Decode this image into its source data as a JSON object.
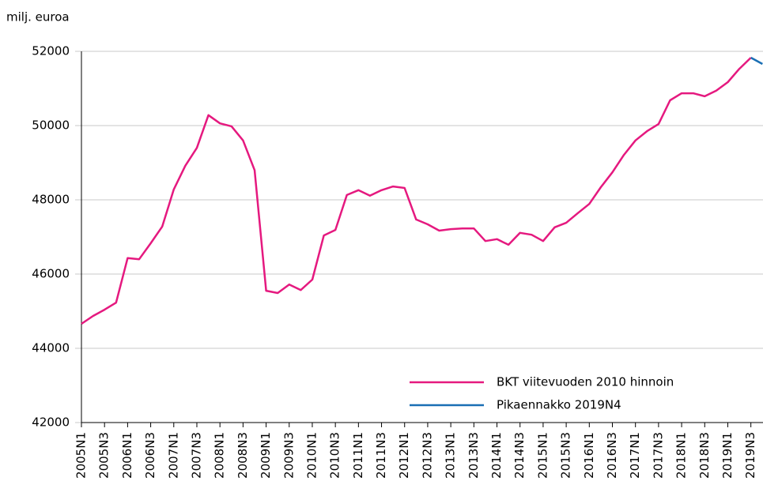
{
  "chart_data": {
    "type": "line",
    "y_axis_label": "milj. euroa",
    "categories": [
      "2005N1",
      null,
      "2005N3",
      null,
      "2006N1",
      null,
      "2006N3",
      null,
      "2007N1",
      null,
      "2007N3",
      null,
      "2008N1",
      null,
      "2008N3",
      null,
      "2009N1",
      null,
      "2009N3",
      null,
      "2010N1",
      null,
      "2010N3",
      null,
      "2011N1",
      null,
      "2011N3",
      null,
      "2012N1",
      null,
      "2012N3",
      null,
      "2013N1",
      null,
      "2013N3",
      null,
      "2014N1",
      null,
      "2014N3",
      null,
      "2015N1",
      null,
      "2015N3",
      null,
      "2016N1",
      null,
      "2016N3",
      null,
      "2017N1",
      null,
      "2017N3",
      null,
      "2018N1",
      null,
      "2018N3",
      null,
      "2019N1",
      null,
      "2019N3",
      null
    ],
    "series": [
      {
        "name": "BKT viitevuoden 2010 hinnoin",
        "color": "#e5197f",
        "values": [
          44660,
          44870,
          45040,
          45230,
          46430,
          46400,
          46830,
          47280,
          48280,
          48920,
          49400,
          50280,
          50060,
          49980,
          49600,
          48800,
          45550,
          45490,
          45720,
          45570,
          45850,
          47040,
          47190,
          48130,
          48260,
          48110,
          48260,
          48360,
          48320,
          47470,
          47340,
          47170,
          47210,
          47230,
          47230,
          46890,
          46940,
          46790,
          47110,
          47060,
          46890,
          47260,
          47380,
          47640,
          47890,
          48340,
          48740,
          49210,
          49600,
          49850,
          50040,
          50680,
          50870,
          50870,
          50790,
          50940,
          51170,
          51530,
          51830,
          null
        ]
      },
      {
        "name": "Pikaennakko 2019N4",
        "color": "#1a6fb4",
        "values": [
          null,
          null,
          null,
          null,
          null,
          null,
          null,
          null,
          null,
          null,
          null,
          null,
          null,
          null,
          null,
          null,
          null,
          null,
          null,
          null,
          null,
          null,
          null,
          null,
          null,
          null,
          null,
          null,
          null,
          null,
          null,
          null,
          null,
          null,
          null,
          null,
          null,
          null,
          null,
          null,
          null,
          null,
          null,
          null,
          null,
          null,
          null,
          null,
          null,
          null,
          null,
          null,
          null,
          null,
          null,
          null,
          null,
          null,
          51830,
          51660
        ]
      }
    ],
    "ylim": [
      42000,
      52000
    ],
    "yticks": [
      42000,
      44000,
      46000,
      48000,
      50000,
      52000
    ],
    "grid": true,
    "legend": "lower right"
  }
}
